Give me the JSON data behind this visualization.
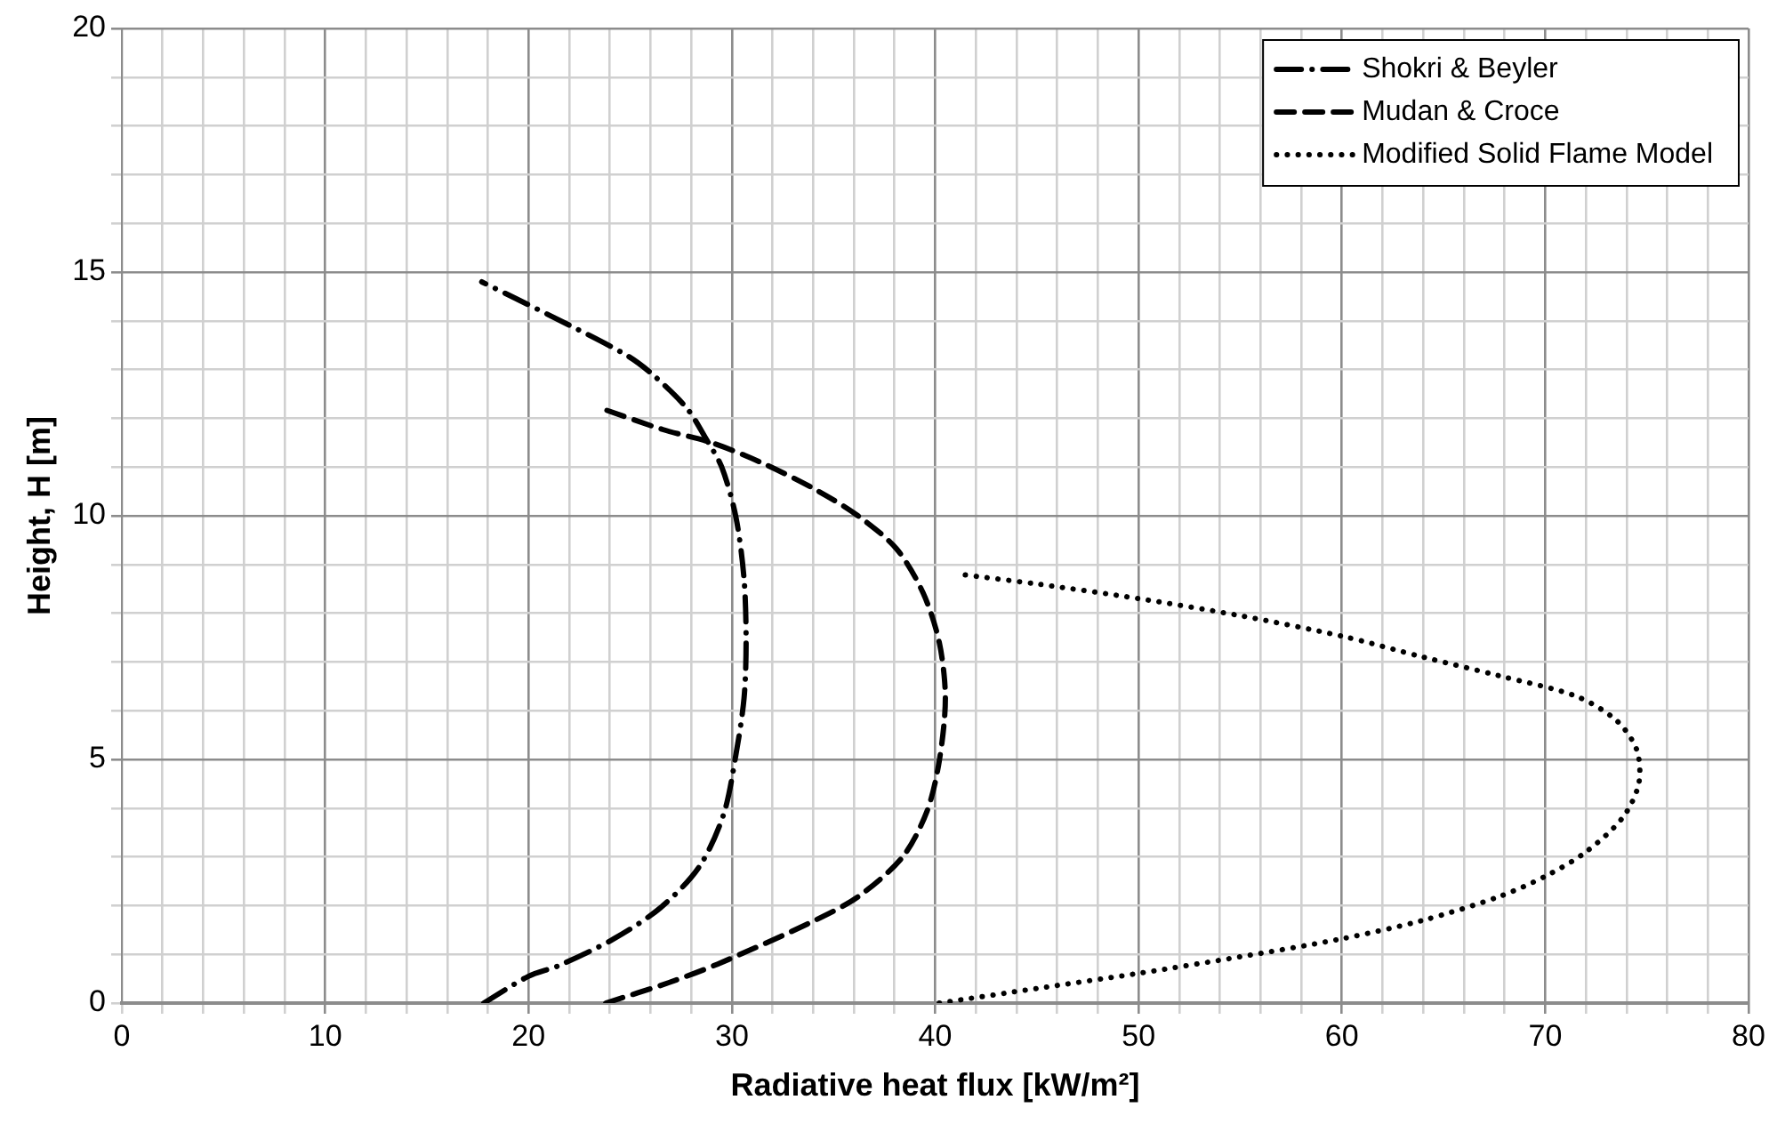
{
  "chart_data": {
    "type": "line",
    "xlabel": "Radiative heat flux [kW/m²]",
    "ylabel": "Height, H [m]",
    "xlim": [
      0,
      80
    ],
    "ylim": [
      0,
      20
    ],
    "xticks": [
      0,
      {
        "value": 2,
        "label": null
      },
      {
        "value": 4,
        "label": null
      },
      {
        "value": 6,
        "label": null
      },
      {
        "value": 8,
        "label": null
      },
      10,
      {
        "value": 12,
        "label": null
      },
      {
        "value": 14,
        "label": null
      },
      {
        "value": 16,
        "label": null
      },
      {
        "value": 18,
        "label": null
      },
      20,
      {
        "value": 22,
        "label": null
      },
      {
        "value": 24,
        "label": null
      },
      {
        "value": 26,
        "label": null
      },
      {
        "value": 28,
        "label": null
      },
      30,
      {
        "value": 32,
        "label": null
      },
      {
        "value": 34,
        "label": null
      },
      {
        "value": 36,
        "label": null
      },
      {
        "value": 38,
        "label": null
      },
      40,
      {
        "value": 42,
        "label": null
      },
      {
        "value": 44,
        "label": null
      },
      {
        "value": 46,
        "label": null
      },
      {
        "value": 48,
        "label": null
      },
      50,
      {
        "value": 52,
        "label": null
      },
      {
        "value": 54,
        "label": null
      },
      {
        "value": 56,
        "label": null
      },
      {
        "value": 58,
        "label": null
      },
      60,
      {
        "value": 62,
        "label": null
      },
      {
        "value": 64,
        "label": null
      },
      {
        "value": 66,
        "label": null
      },
      {
        "value": 68,
        "label": null
      },
      70,
      {
        "value": 72,
        "label": null
      },
      {
        "value": 74,
        "label": null
      },
      {
        "value": 76,
        "label": null
      },
      {
        "value": 78,
        "label": null
      },
      80
    ],
    "yticks": [
      0,
      {
        "value": 1,
        "label": null
      },
      {
        "value": 2,
        "label": null
      },
      {
        "value": 3,
        "label": null
      },
      {
        "value": 4,
        "label": null
      },
      5,
      {
        "value": 6,
        "label": null
      },
      {
        "value": 7,
        "label": null
      },
      {
        "value": 8,
        "label": null
      },
      {
        "value": 9,
        "label": null
      },
      10,
      {
        "value": 11,
        "label": null
      },
      {
        "value": 12,
        "label": null
      },
      {
        "value": 13,
        "label": null
      },
      {
        "value": 14,
        "label": null
      },
      15,
      {
        "value": 16,
        "label": null
      },
      {
        "value": 17,
        "label": null
      },
      {
        "value": 18,
        "label": null
      },
      {
        "value": 19,
        "label": null
      },
      20
    ],
    "grid": true,
    "legend": "top right",
    "marker": "none",
    "series": [
      {
        "name": "Shokri & Beyler",
        "color": "#000000",
        "line_style": "dashdot",
        "x": [
          17.8,
          20,
          21.5,
          24.2,
          26.5,
          28.4,
          29.6,
          30.2,
          30.6,
          30.7,
          30.6,
          30.2,
          29.5,
          28.7,
          27.8,
          26.1,
          24.8,
          21.1,
          17.7
        ],
        "values": [
          0,
          0.55,
          0.77,
          1.32,
          1.96,
          2.8,
          3.88,
          5.1,
          6.26,
          7.4,
          8.7,
          9.97,
          11,
          11.6,
          12.2,
          12.9,
          13.3,
          14.1,
          14.8
        ]
      },
      {
        "name": "Mudan & Croce",
        "color": "#000000",
        "line_style": "dashed",
        "x": [
          23.8,
          26.9,
          29.3,
          33.8,
          36.2,
          38.4,
          39.6,
          40.2,
          40.5,
          40.2,
          39.4,
          38.1,
          36.2,
          34.1,
          31.4,
          29,
          26.6,
          23.6
        ],
        "values": [
          0,
          0.42,
          0.8,
          1.64,
          2.18,
          3,
          3.94,
          4.97,
          6.25,
          7.4,
          8.42,
          9.32,
          10,
          10.54,
          11.1,
          11.5,
          11.77,
          12.2
        ]
      },
      {
        "name": "Modified Solid Flame Model",
        "color": "#000000",
        "line_style": "dotted",
        "x": [
          40.2,
          45,
          50,
          55,
          60,
          64,
          67.7,
          70,
          72,
          73.8,
          74.6,
          74.5,
          73.5,
          71.5,
          67.7,
          64,
          60,
          55,
          50,
          45,
          41
        ],
        "values": [
          0,
          0.3,
          0.61,
          0.95,
          1.32,
          1.7,
          2.18,
          2.6,
          3.1,
          3.8,
          4.5,
          5.2,
          5.8,
          6.3,
          6.72,
          7.1,
          7.53,
          7.95,
          8.3,
          8.6,
          8.81
        ]
      }
    ]
  }
}
